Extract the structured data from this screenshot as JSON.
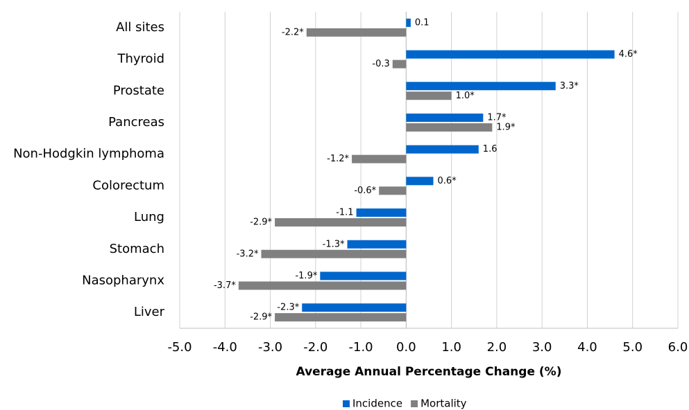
{
  "chart_data": {
    "type": "barh",
    "xlabel": "Average Annual Percentage Change (%)",
    "categories": [
      "All sites",
      "Thyroid",
      "Prostate",
      "Pancreas",
      "Non-Hodgkin lymphoma",
      "Colorectum",
      "Lung",
      "Stomach",
      "Nasopharynx",
      "Liver"
    ],
    "series": [
      {
        "name": "Incidence",
        "color": "#0066cc",
        "values": [
          0.1,
          4.6,
          3.3,
          1.7,
          1.6,
          0.6,
          -1.1,
          -1.3,
          -1.9,
          -2.3
        ],
        "value_labels": [
          "0.1",
          "4.6*",
          "3.3*",
          "1.7*",
          "1.6",
          "0.6*",
          "-1.1",
          "-1.3*",
          "-1.9*",
          "-2.3*"
        ]
      },
      {
        "name": "Mortality",
        "color": "#808080",
        "values": [
          -2.2,
          -0.3,
          1.0,
          1.9,
          -1.2,
          -0.6,
          -2.9,
          -3.2,
          -3.7,
          -2.9
        ],
        "value_labels": [
          "-2.2*",
          "-0.3",
          "1.0*",
          "1.9*",
          "-1.2*",
          "-0.6*",
          "-2.9*",
          "-3.2*",
          "-3.7*",
          "-2.9*"
        ]
      }
    ],
    "xlim": [
      -5,
      6
    ],
    "xticks": [
      {
        "value": -5,
        "label": "-5.0"
      },
      {
        "value": -4,
        "label": "-4.0"
      },
      {
        "value": -3,
        "label": "-3.0"
      },
      {
        "value": -2,
        "label": "-2.0"
      },
      {
        "value": -1,
        "label": "-1.0"
      },
      {
        "value": 0,
        "label": "0.0"
      },
      {
        "value": 1,
        "label": "1.0"
      },
      {
        "value": 2,
        "label": "2.0"
      },
      {
        "value": 3,
        "label": "3.0"
      },
      {
        "value": 4,
        "label": "4.0"
      },
      {
        "value": 5,
        "label": "5.0"
      },
      {
        "value": 6,
        "label": "6.0"
      }
    ],
    "grid": true
  }
}
